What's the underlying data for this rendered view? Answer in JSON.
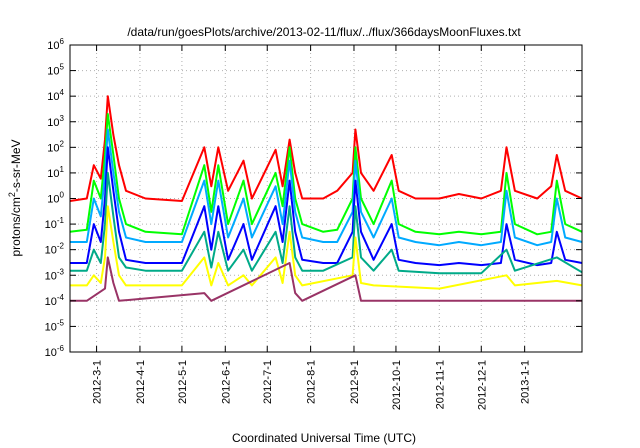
{
  "chart_data": {
    "type": "line",
    "title": "/data/run/goesPlots/archive/2013-02-11/flux/../flux/366daysMoonFluxes.txt",
    "xlabel": "Coordinated Universal Time (UTC)",
    "ylabel_parts": [
      "protons/cm",
      "2",
      "-s-sr-MeV"
    ],
    "y_scale": "log",
    "ylim_exponents": [
      -6,
      6
    ],
    "y_tick_base": "10",
    "y_tick_exponents": [
      "-6",
      "-5",
      "-4",
      "-3",
      "-2",
      "-1",
      "0",
      "1",
      "2",
      "3",
      "4",
      "5",
      "6"
    ],
    "x_range": [
      "2012-02-11",
      "2013-02-11"
    ],
    "x_ticks": [
      "2012-3-1",
      "2012-4-1",
      "2012-5-1",
      "2012-6-1",
      "2012-7-1",
      "2012-8-1",
      "2012-9-1",
      "2012-10-1",
      "2012-11-1",
      "2012-12-1",
      "2013-1-1"
    ],
    "x_tick_dates": [
      "2012-03-01",
      "2012-04-01",
      "2012-05-01",
      "2012-06-01",
      "2012-07-01",
      "2012-08-01",
      "2012-09-01",
      "2012-10-01",
      "2012-11-01",
      "2012-12-01",
      "2013-01-01"
    ],
    "grid": true,
    "legend": "none",
    "series": [
      {
        "color": "#ff0000",
        "points": [
          [
            "2012-02-11",
            0.8
          ],
          [
            "2012-02-23",
            1.0
          ],
          [
            "2012-02-28",
            20
          ],
          [
            "2012-03-04",
            6
          ],
          [
            "2012-03-07",
            200
          ],
          [
            "2012-03-09",
            10000
          ],
          [
            "2012-03-13",
            300
          ],
          [
            "2012-03-17",
            20
          ],
          [
            "2012-03-22",
            2
          ],
          [
            "2012-04-05",
            1
          ],
          [
            "2012-05-01",
            0.8
          ],
          [
            "2012-05-17",
            100
          ],
          [
            "2012-05-22",
            3
          ],
          [
            "2012-05-27",
            100
          ],
          [
            "2012-06-03",
            2
          ],
          [
            "2012-06-14",
            30
          ],
          [
            "2012-06-20",
            1
          ],
          [
            "2012-07-07",
            80
          ],
          [
            "2012-07-12",
            3
          ],
          [
            "2012-07-17",
            200
          ],
          [
            "2012-07-21",
            10
          ],
          [
            "2012-07-26",
            1
          ],
          [
            "2012-08-10",
            1
          ],
          [
            "2012-08-20",
            2
          ],
          [
            "2012-08-31",
            10
          ],
          [
            "2012-09-02",
            500
          ],
          [
            "2012-09-06",
            10
          ],
          [
            "2012-09-15",
            2
          ],
          [
            "2012-09-28",
            50
          ],
          [
            "2012-10-03",
            2
          ],
          [
            "2012-10-15",
            1
          ],
          [
            "2012-11-01",
            1
          ],
          [
            "2012-11-15",
            1.5
          ],
          [
            "2012-12-01",
            1
          ],
          [
            "2012-12-15",
            2
          ],
          [
            "2012-12-19",
            100
          ],
          [
            "2012-12-25",
            2
          ],
          [
            "2013-01-10",
            1
          ],
          [
            "2013-01-20",
            3
          ],
          [
            "2013-01-24",
            50
          ],
          [
            "2013-01-30",
            2
          ],
          [
            "2013-02-11",
            1
          ]
        ]
      },
      {
        "color": "#00ff00",
        "points": [
          [
            "2012-02-11",
            0.05
          ],
          [
            "2012-02-23",
            0.06
          ],
          [
            "2012-02-28",
            5
          ],
          [
            "2012-03-04",
            1
          ],
          [
            "2012-03-07",
            50
          ],
          [
            "2012-03-09",
            2000
          ],
          [
            "2012-03-13",
            50
          ],
          [
            "2012-03-17",
            1
          ],
          [
            "2012-03-22",
            0.1
          ],
          [
            "2012-04-05",
            0.05
          ],
          [
            "2012-05-01",
            0.04
          ],
          [
            "2012-05-17",
            20
          ],
          [
            "2012-05-22",
            0.3
          ],
          [
            "2012-05-27",
            20
          ],
          [
            "2012-06-03",
            0.1
          ],
          [
            "2012-06-14",
            5
          ],
          [
            "2012-06-20",
            0.1
          ],
          [
            "2012-07-07",
            10
          ],
          [
            "2012-07-12",
            0.5
          ],
          [
            "2012-07-17",
            100
          ],
          [
            "2012-07-21",
            1
          ],
          [
            "2012-07-26",
            0.1
          ],
          [
            "2012-08-10",
            0.05
          ],
          [
            "2012-08-20",
            0.06
          ],
          [
            "2012-08-31",
            1
          ],
          [
            "2012-09-02",
            100
          ],
          [
            "2012-09-06",
            1
          ],
          [
            "2012-09-15",
            0.1
          ],
          [
            "2012-09-28",
            5
          ],
          [
            "2012-10-03",
            0.1
          ],
          [
            "2012-10-15",
            0.05
          ],
          [
            "2012-11-01",
            0.04
          ],
          [
            "2012-11-15",
            0.05
          ],
          [
            "2012-12-01",
            0.04
          ],
          [
            "2012-12-15",
            0.05
          ],
          [
            "2012-12-19",
            10
          ],
          [
            "2012-12-25",
            0.1
          ],
          [
            "2013-01-10",
            0.04
          ],
          [
            "2013-01-20",
            0.05
          ],
          [
            "2013-01-24",
            5
          ],
          [
            "2013-01-30",
            0.1
          ],
          [
            "2013-02-11",
            0.05
          ]
        ]
      },
      {
        "color": "#00aaff",
        "points": [
          [
            "2012-02-11",
            0.02
          ],
          [
            "2012-02-23",
            0.02
          ],
          [
            "2012-02-28",
            1
          ],
          [
            "2012-03-04",
            0.2
          ],
          [
            "2012-03-07",
            10
          ],
          [
            "2012-03-09",
            500
          ],
          [
            "2012-03-13",
            10
          ],
          [
            "2012-03-17",
            0.3
          ],
          [
            "2012-03-22",
            0.03
          ],
          [
            "2012-04-05",
            0.02
          ],
          [
            "2012-05-01",
            0.02
          ],
          [
            "2012-05-17",
            5
          ],
          [
            "2012-05-22",
            0.1
          ],
          [
            "2012-05-27",
            5
          ],
          [
            "2012-06-03",
            0.03
          ],
          [
            "2012-06-14",
            1
          ],
          [
            "2012-06-20",
            0.03
          ],
          [
            "2012-07-07",
            3
          ],
          [
            "2012-07-12",
            0.1
          ],
          [
            "2012-07-17",
            30
          ],
          [
            "2012-07-21",
            0.3
          ],
          [
            "2012-07-26",
            0.03
          ],
          [
            "2012-08-10",
            0.02
          ],
          [
            "2012-08-20",
            0.02
          ],
          [
            "2012-08-31",
            0.3
          ],
          [
            "2012-09-02",
            30
          ],
          [
            "2012-09-06",
            0.3
          ],
          [
            "2012-09-15",
            0.03
          ],
          [
            "2012-09-28",
            1
          ],
          [
            "2012-10-03",
            0.03
          ],
          [
            "2012-10-15",
            0.02
          ],
          [
            "2012-11-01",
            0.015
          ],
          [
            "2012-11-15",
            0.02
          ],
          [
            "2012-12-01",
            0.015
          ],
          [
            "2012-12-15",
            0.02
          ],
          [
            "2012-12-19",
            2
          ],
          [
            "2012-12-25",
            0.03
          ],
          [
            "2013-01-10",
            0.015
          ],
          [
            "2013-01-20",
            0.02
          ],
          [
            "2013-01-24",
            1
          ],
          [
            "2013-01-30",
            0.03
          ],
          [
            "2013-02-11",
            0.02
          ]
        ]
      },
      {
        "color": "#0000ff",
        "points": [
          [
            "2012-02-11",
            0.003
          ],
          [
            "2012-02-23",
            0.003
          ],
          [
            "2012-02-28",
            0.1
          ],
          [
            "2012-03-04",
            0.02
          ],
          [
            "2012-03-07",
            1
          ],
          [
            "2012-03-09",
            100
          ],
          [
            "2012-03-13",
            2
          ],
          [
            "2012-03-17",
            0.05
          ],
          [
            "2012-03-22",
            0.004
          ],
          [
            "2012-04-05",
            0.003
          ],
          [
            "2012-05-01",
            0.003
          ],
          [
            "2012-05-17",
            0.5
          ],
          [
            "2012-05-22",
            0.01
          ],
          [
            "2012-05-27",
            0.5
          ],
          [
            "2012-06-03",
            0.004
          ],
          [
            "2012-06-14",
            0.1
          ],
          [
            "2012-06-20",
            0.004
          ],
          [
            "2012-07-07",
            0.5
          ],
          [
            "2012-07-12",
            0.02
          ],
          [
            "2012-07-17",
            5
          ],
          [
            "2012-07-21",
            0.05
          ],
          [
            "2012-07-26",
            0.004
          ],
          [
            "2012-08-10",
            0.003
          ],
          [
            "2012-08-20",
            0.003
          ],
          [
            "2012-08-31",
            0.05
          ],
          [
            "2012-09-02",
            5
          ],
          [
            "2012-09-06",
            0.05
          ],
          [
            "2012-09-15",
            0.004
          ],
          [
            "2012-09-28",
            0.1
          ],
          [
            "2012-10-03",
            0.004
          ],
          [
            "2012-10-15",
            0.003
          ],
          [
            "2012-11-01",
            0.0025
          ],
          [
            "2012-11-15",
            0.003
          ],
          [
            "2012-12-01",
            0.0025
          ],
          [
            "2012-12-15",
            0.003
          ],
          [
            "2012-12-19",
            0.1
          ],
          [
            "2012-12-25",
            0.004
          ],
          [
            "2013-01-10",
            0.0025
          ],
          [
            "2013-01-20",
            0.003
          ],
          [
            "2013-01-24",
            0.05
          ],
          [
            "2013-01-30",
            0.004
          ],
          [
            "2013-02-11",
            0.003
          ]
        ]
      },
      {
        "color": "#00aa88",
        "points": [
          [
            "2012-02-11",
            0.0015
          ],
          [
            "2012-02-23",
            0.0015
          ],
          [
            "2012-02-28",
            0.01
          ],
          [
            "2012-03-04",
            0.003
          ],
          [
            "2012-03-07",
            0.1
          ],
          [
            "2012-03-09",
            10
          ],
          [
            "2012-03-13",
            0.2
          ],
          [
            "2012-03-17",
            0.005
          ],
          [
            "2012-03-22",
            0.002
          ],
          [
            "2012-04-05",
            0.0015
          ],
          [
            "2012-05-01",
            0.0015
          ],
          [
            "2012-05-17",
            0.05
          ],
          [
            "2012-05-22",
            0.002
          ],
          [
            "2012-05-27",
            0.05
          ],
          [
            "2012-06-03",
            0.0015
          ],
          [
            "2012-06-14",
            0.01
          ],
          [
            "2012-06-20",
            0.0015
          ],
          [
            "2012-07-07",
            0.05
          ],
          [
            "2012-07-12",
            0.003
          ],
          [
            "2012-07-17",
            0.5
          ],
          [
            "2012-07-21",
            0.005
          ],
          [
            "2012-07-26",
            0.0015
          ],
          [
            "2012-08-10",
            0.0015
          ],
          [
            "2012-08-31",
            0.005
          ],
          [
            "2012-09-02",
            0.5
          ],
          [
            "2012-09-06",
            0.005
          ],
          [
            "2012-09-15",
            0.0015
          ],
          [
            "2012-09-28",
            0.01
          ],
          [
            "2012-10-03",
            0.0015
          ],
          [
            "2012-11-01",
            0.0012
          ],
          [
            "2012-12-01",
            0.0012
          ],
          [
            "2012-12-19",
            0.01
          ],
          [
            "2012-12-25",
            0.0015
          ],
          [
            "2013-01-24",
            0.005
          ],
          [
            "2013-02-11",
            0.0013
          ]
        ]
      },
      {
        "color": "#ffff00",
        "points": [
          [
            "2012-02-11",
            0.0004
          ],
          [
            "2012-02-23",
            0.0004
          ],
          [
            "2012-02-28",
            0.001
          ],
          [
            "2012-03-04",
            0.0005
          ],
          [
            "2012-03-07",
            0.005
          ],
          [
            "2012-03-09",
            0.5
          ],
          [
            "2012-03-13",
            0.02
          ],
          [
            "2012-03-17",
            0.001
          ],
          [
            "2012-03-22",
            0.0004
          ],
          [
            "2012-05-01",
            0.0004
          ],
          [
            "2012-05-17",
            0.005
          ],
          [
            "2012-05-22",
            0.0004
          ],
          [
            "2012-05-27",
            0.003
          ],
          [
            "2012-06-03",
            0.0004
          ],
          [
            "2012-06-14",
            0.001
          ],
          [
            "2012-06-20",
            0.0004
          ],
          [
            "2012-07-07",
            0.005
          ],
          [
            "2012-07-12",
            0.0005
          ],
          [
            "2012-07-17",
            0.05
          ],
          [
            "2012-07-21",
            0.001
          ],
          [
            "2012-07-26",
            0.0004
          ],
          [
            "2012-08-31",
            0.001
          ],
          [
            "2012-09-02",
            0.03
          ],
          [
            "2012-09-06",
            0.0005
          ],
          [
            "2012-09-15",
            0.0004
          ],
          [
            "2012-11-01",
            0.0003
          ],
          [
            "2012-12-19",
            0.001
          ],
          [
            "2012-12-25",
            0.0004
          ],
          [
            "2013-01-24",
            0.0006
          ],
          [
            "2013-02-11",
            0.0004
          ]
        ]
      },
      {
        "color": "#993366",
        "points": [
          [
            "2012-02-11",
            0.0001
          ],
          [
            "2012-02-23",
            0.0001
          ],
          [
            "2012-03-07",
            0.0003
          ],
          [
            "2012-03-09",
            0.005
          ],
          [
            "2012-03-13",
            0.0005
          ],
          [
            "2012-03-17",
            0.0001
          ],
          [
            "2012-05-17",
            0.0002
          ],
          [
            "2012-05-22",
            0.0001
          ],
          [
            "2012-07-17",
            0.003
          ],
          [
            "2012-07-21",
            0.0002
          ],
          [
            "2012-07-26",
            0.0001
          ],
          [
            "2012-09-02",
            0.001
          ],
          [
            "2012-09-06",
            0.0001
          ],
          [
            "2012-12-19",
            0.0001
          ],
          [
            "2013-01-24",
            0.0001
          ],
          [
            "2013-02-11",
            0.0001
          ]
        ]
      }
    ]
  }
}
